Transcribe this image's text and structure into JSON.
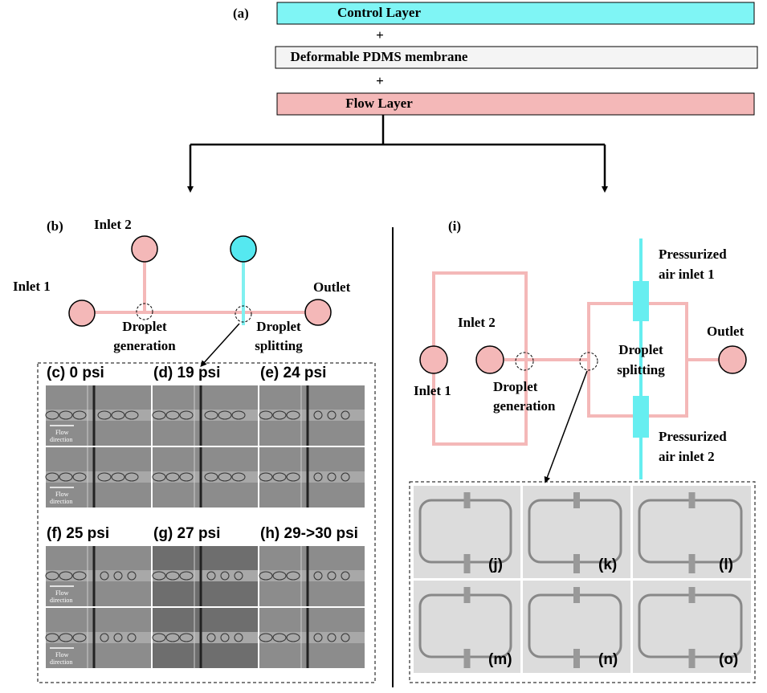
{
  "panel_a": {
    "label": "(a)",
    "layers": [
      "Control Layer",
      "Deformable PDMS membrane",
      "Flow Layer"
    ],
    "plus": [
      "+",
      "+"
    ]
  },
  "panel_b": {
    "label": "(b)",
    "inlet_1": "Inlet 1",
    "inlet_2": "Inlet 2",
    "outlet": "Outlet",
    "droplet_generation": [
      "Droplet",
      "generation"
    ],
    "droplet_splitting": [
      "Droplet",
      "splitting"
    ],
    "flow_direction": [
      "Flow",
      "direction"
    ],
    "frames": [
      "(c) 0 psi",
      "(d) 19 psi",
      "(e) 24 psi",
      "(f) 25 psi",
      "(g) 27 psi",
      "(h) 29->30 psi"
    ]
  },
  "panel_i": {
    "label": "(i)",
    "inlet_1": "Inlet 1",
    "inlet_2": "Inlet 2",
    "outlet": "Outlet",
    "droplet_generation": [
      "Droplet",
      "generation"
    ],
    "droplet_splitting": [
      "Droplet",
      "splitting"
    ],
    "air_inlet_1": [
      "Pressurized",
      "air inlet 1"
    ],
    "air_inlet_2": [
      "Pressurized",
      "air inlet 2"
    ],
    "frames": [
      "(j)",
      "(k)",
      "(l)",
      "(m)",
      "(n)",
      "(o)"
    ]
  }
}
